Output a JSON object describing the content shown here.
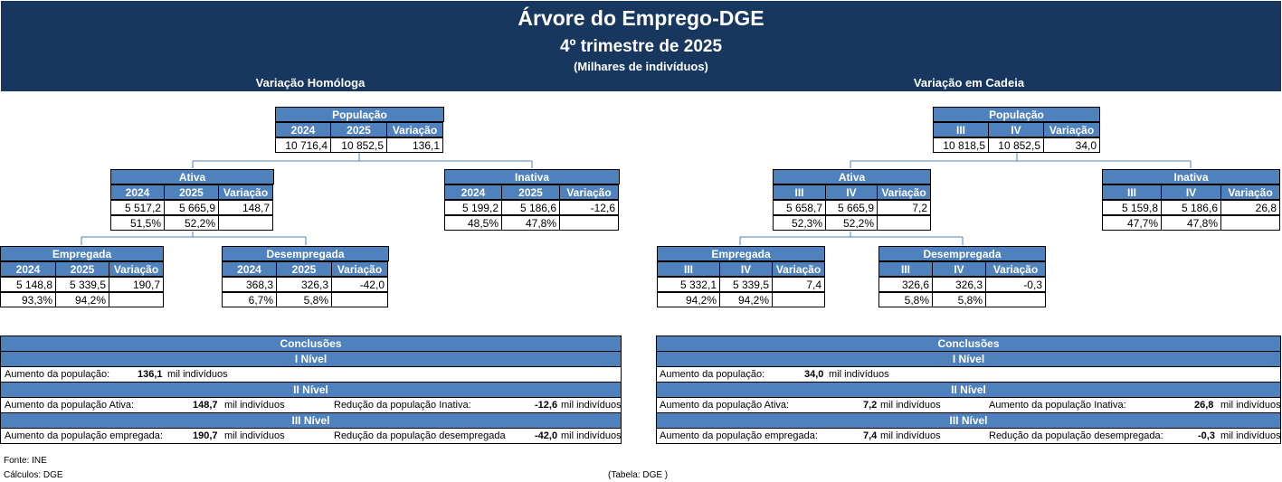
{
  "header": {
    "title": "Árvore do Emprego-DGE",
    "subtitle": "4º trimestre de 2025",
    "unit": "(Milhares de indivíduos)"
  },
  "left": {
    "section_title": "Variação Homóloga",
    "h1": "2024",
    "h2": "2025",
    "h3": "Variação",
    "populacao": {
      "title": "População",
      "v1": "10 716,4",
      "v2": "10 852,5",
      "v3": "136,1"
    },
    "ativa": {
      "title": "Ativa",
      "v1": "5 517,2",
      "v2": "5 665,9",
      "v3": "148,7",
      "p1": "51,5%",
      "p2": "52,2%"
    },
    "inativa": {
      "title": "Inativa",
      "v1": "5 199,2",
      "v2": "5 186,6",
      "v3": "-12,6",
      "p1": "48,5%",
      "p2": "47,8%"
    },
    "empregada": {
      "title": "Empregada",
      "v1": "5 148,8",
      "v2": "5 339,5",
      "v3": "190,7",
      "p1": "93,3%",
      "p2": "94,2%"
    },
    "desempregada": {
      "title": "Desempregada",
      "v1": "368,3",
      "v2": "326,3",
      "v3": "-42,0",
      "p1": "6,7%",
      "p2": "5,8%"
    },
    "conclusoes": {
      "title": "Conclusões",
      "n1": "I Nível",
      "n2": "II Nível",
      "n3": "III Nível",
      "l1_label": "Aumento da  população:",
      "l1_val": "136,1",
      "l1_unit": "mil indivíduos",
      "l2a_label": "Aumento da  população Ativa:",
      "l2a_val": "148,7",
      "l2a_unit": "mil indivíduos",
      "l2b_label": "Redução da população Inativa:",
      "l2b_val": "-12,6",
      "l2b_unit": "mil indivíduos",
      "l3a_label": "Aumento da população empregada:",
      "l3a_val": "190,7",
      "l3a_unit": "mil indivíduos",
      "l3b_label": "Redução da população desempregada",
      "l3b_val": "-42,0",
      "l3b_unit": "mil indivíduos"
    }
  },
  "right": {
    "section_title": "Variação em Cadeia",
    "h1": "III",
    "h2": "IV",
    "h3": "Variação",
    "populacao": {
      "title": "População",
      "v1": "10 818,5",
      "v2": "10 852,5",
      "v3": "34,0"
    },
    "ativa": {
      "title": "Ativa",
      "v1": "5 658,7",
      "v2": "5 665,9",
      "v3": "7,2",
      "p1": "52,3%",
      "p2": "52,2%"
    },
    "inativa": {
      "title": "Inativa",
      "v1": "5 159,8",
      "v2": "5 186,6",
      "v3": "26,8",
      "p1": "47,7%",
      "p2": "47,8%"
    },
    "empregada": {
      "title": "Empregada",
      "v1": "5 332,1",
      "v2": "5 339,5",
      "v3": "7,4",
      "p1": "94,2%",
      "p2": "94,2%"
    },
    "desempregada": {
      "title": "Desempregada",
      "v1": "326,6",
      "v2": "326,3",
      "v3": "-0,3",
      "p1": "5,8%",
      "p2": "5,8%"
    },
    "conclusoes": {
      "title": "Conclusões",
      "n1": "I Nível",
      "n2": "II Nível",
      "n3": "III Nível",
      "l1_label": "Aumento da   população:",
      "l1_val": "34,0",
      "l1_unit": "mil indivíduos",
      "l2a_label": "Aumento da   população Ativa:",
      "l2a_val": "7,2",
      "l2a_unit": "mil indivíduos",
      "l2b_label": "Aumento da  população Inativa:",
      "l2b_val": "26,8",
      "l2b_unit": "mil indivíduos",
      "l3a_label": "Aumento da   população empregada:",
      "l3a_val": "7,4",
      "l3a_unit": "mil indivíduos",
      "l3b_label": "Redução  da  população  desempregada:",
      "l3b_val": "-0,3",
      "l3b_unit": "mil indivíduos"
    }
  },
  "footer": {
    "fonte": "Fonte: INE",
    "calculos": "Cálculos: DGE",
    "tabela": "(Tabela: DGE )"
  }
}
